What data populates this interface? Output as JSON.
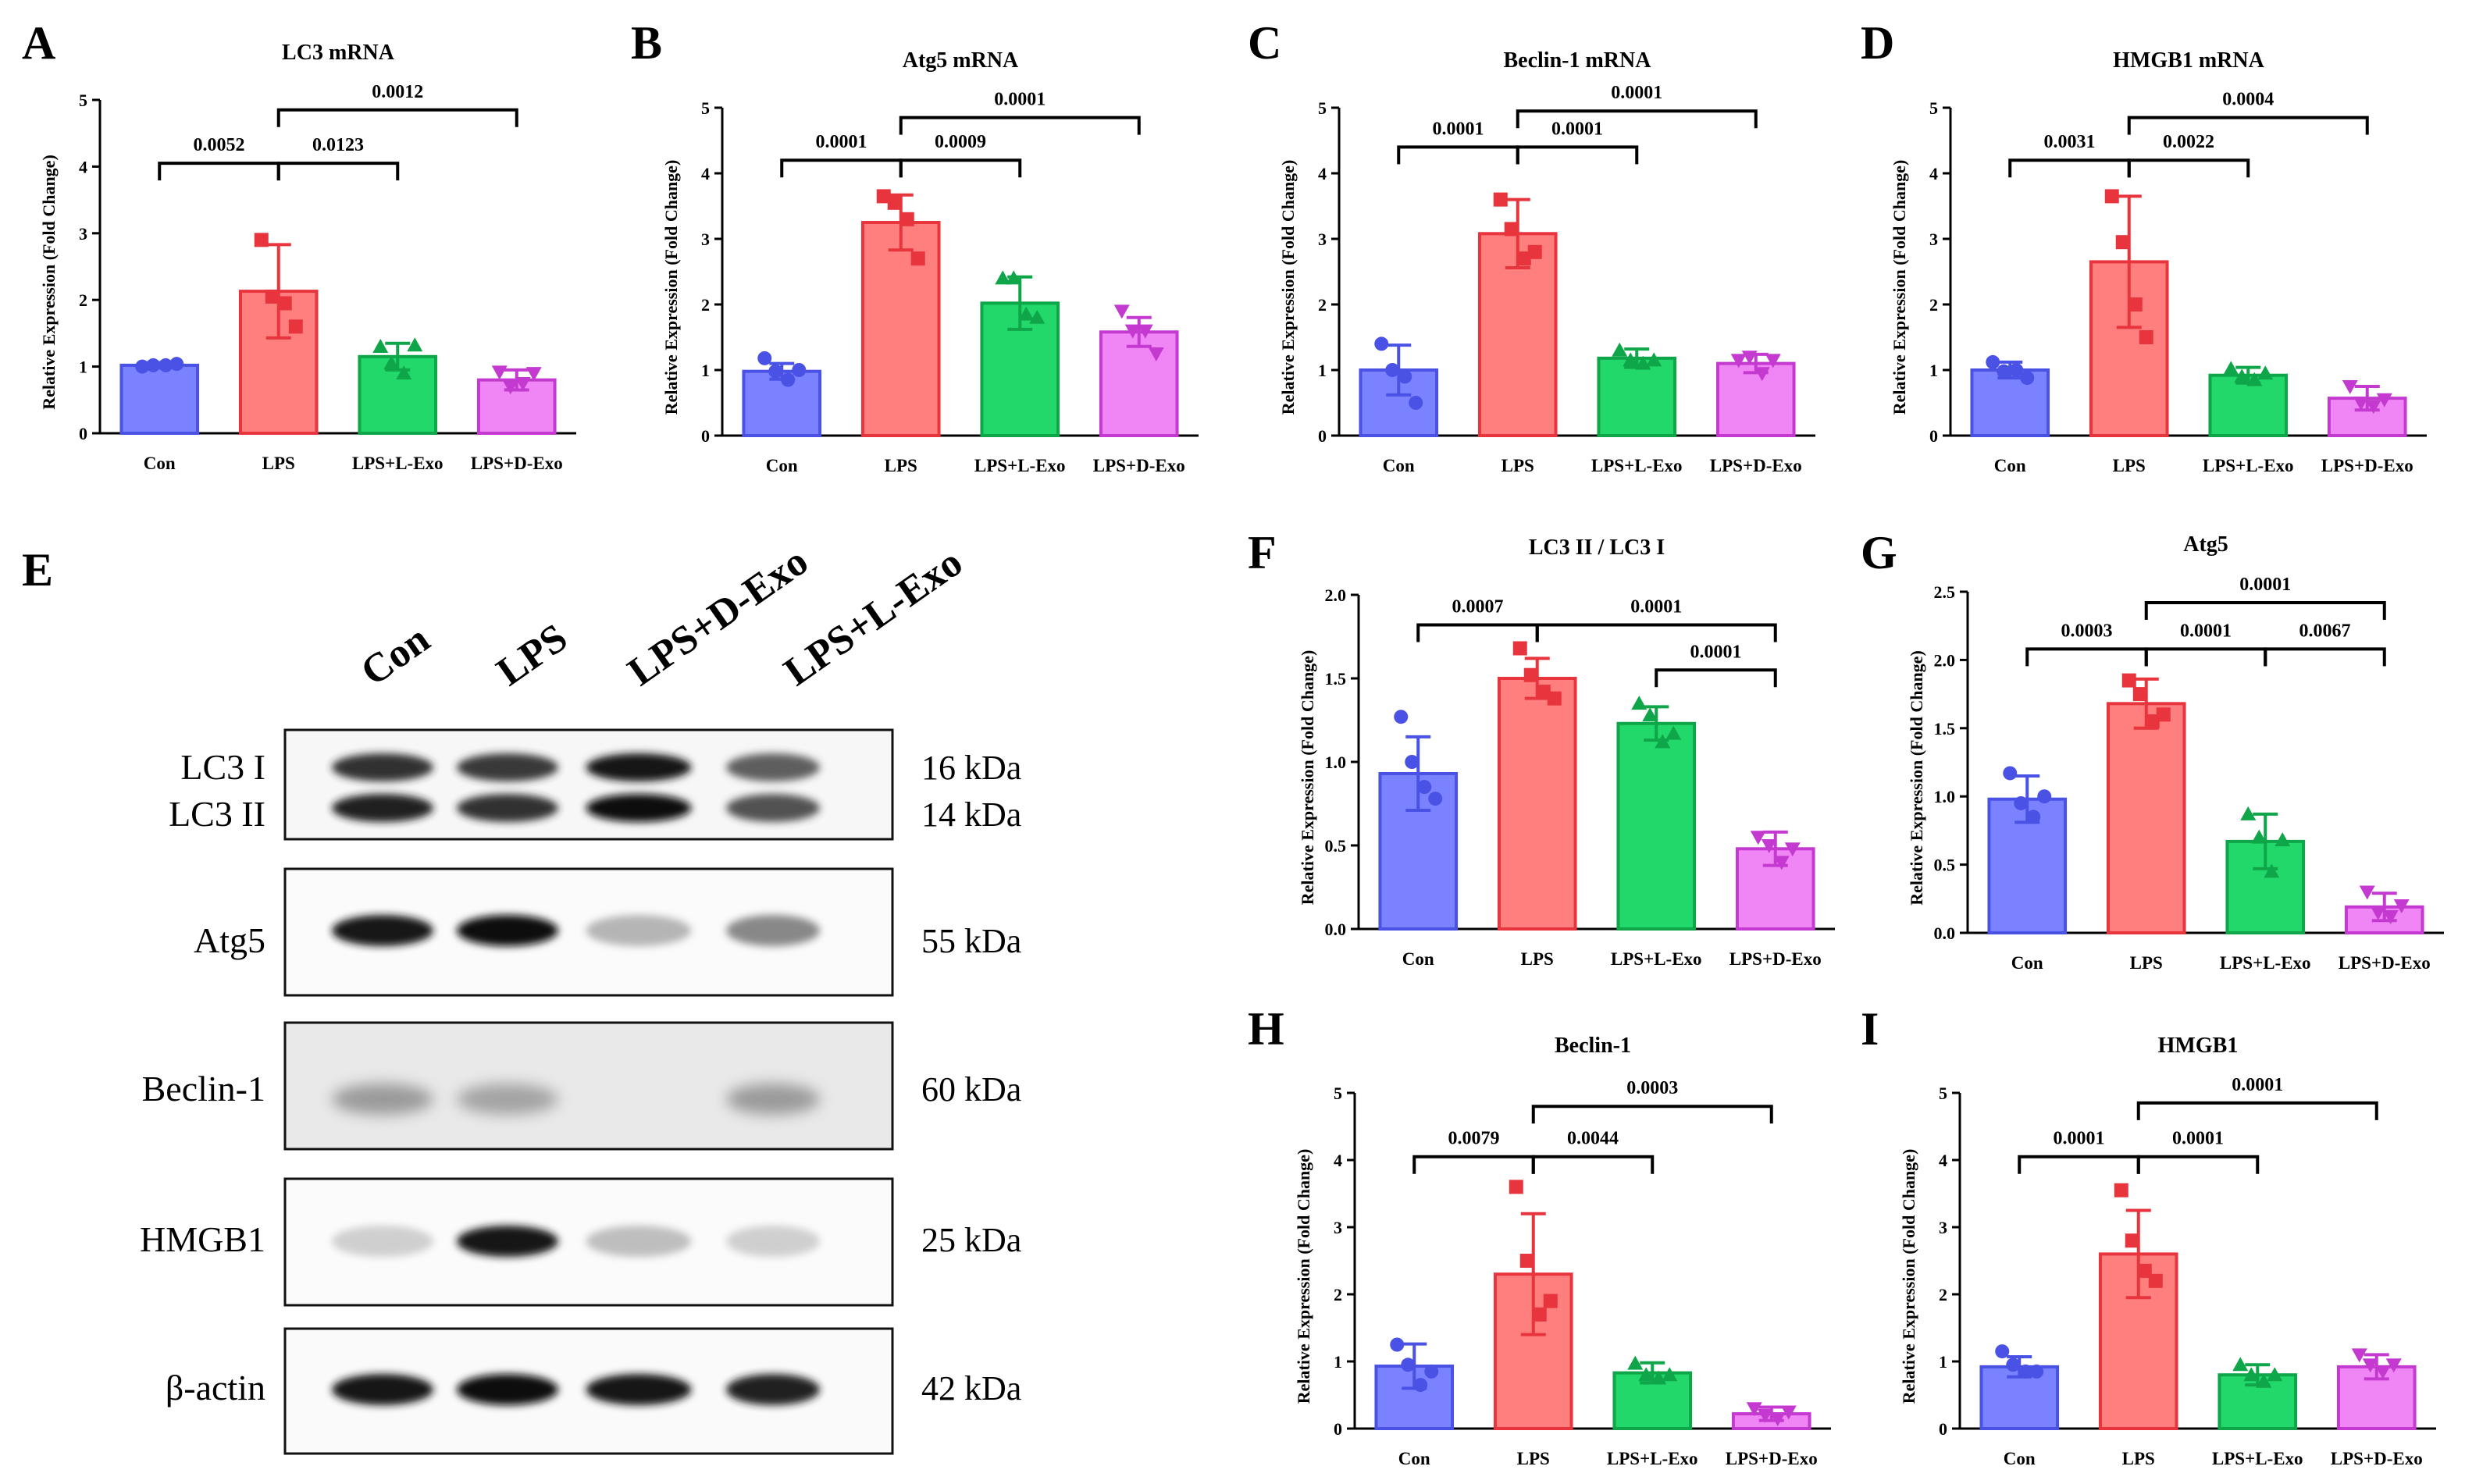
{
  "colors": {
    "Con": {
      "fill": "#7b82ff",
      "edge": "#4a52e6"
    },
    "LPS": {
      "fill": "#ff7f7f",
      "edge": "#e8343d"
    },
    "LPS+L-Exo": {
      "fill": "#22d86a",
      "edge": "#0fa64a"
    },
    "LPS+D-Exo": {
      "fill": "#f086f5",
      "edge": "#c43ad0"
    }
  },
  "chart_data": [
    {
      "panel": "A",
      "type": "bar",
      "title": "LC3 mRNA",
      "ylabel": [
        "Relative Expression",
        "(Fold Change)"
      ],
      "ylim": [
        0,
        5
      ],
      "yticks": [
        "0",
        "1",
        "2",
        "3",
        "4",
        "5"
      ],
      "ytick_values": [
        0,
        1,
        2,
        3,
        4,
        5
      ],
      "categories": [
        "Con",
        "LPS",
        "LPS+L-Exo",
        "LPS+D-Exo"
      ],
      "values": [
        1.02,
        2.13,
        1.15,
        0.8
      ],
      "errors": [
        0.04,
        0.7,
        0.2,
        0.15
      ],
      "points": [
        [
          1.0,
          1.02,
          1.02,
          1.04
        ],
        [
          2.9,
          2.05,
          1.95,
          1.6
        ],
        [
          1.3,
          1.05,
          0.9,
          1.32
        ],
        [
          0.92,
          0.7,
          0.75,
          0.9
        ]
      ],
      "comparisons": [
        {
          "from": 0,
          "to": 1,
          "y": 4.05,
          "label": "0.0052"
        },
        {
          "from": 1,
          "to": 2,
          "y": 4.05,
          "label": "0.0123"
        },
        {
          "from": 1,
          "to": 3,
          "y": 4.85,
          "label": "0.0012"
        }
      ]
    },
    {
      "panel": "B",
      "type": "bar",
      "title": "Atg5 mRNA",
      "ylabel": [
        "Relative Expression",
        "(Fold Change)"
      ],
      "ylim": [
        0,
        5
      ],
      "yticks": [
        "0",
        "1",
        "2",
        "3",
        "4",
        "5"
      ],
      "ytick_values": [
        0,
        1,
        2,
        3,
        4,
        5
      ],
      "categories": [
        "Con",
        "LPS",
        "LPS+L-Exo",
        "LPS+D-Exo"
      ],
      "values": [
        0.98,
        3.25,
        2.02,
        1.58
      ],
      "errors": [
        0.12,
        0.42,
        0.4,
        0.22
      ],
      "points": [
        [
          1.18,
          0.98,
          0.85,
          1.0
        ],
        [
          3.65,
          3.55,
          3.3,
          2.7
        ],
        [
          2.4,
          2.4,
          1.85,
          1.8
        ],
        [
          1.9,
          1.6,
          1.6,
          1.25
        ]
      ],
      "comparisons": [
        {
          "from": 0,
          "to": 1,
          "y": 4.2,
          "label": "0.0001"
        },
        {
          "from": 1,
          "to": 2,
          "y": 4.2,
          "label": "0.0009"
        },
        {
          "from": 1,
          "to": 3,
          "y": 4.85,
          "label": "0.0001"
        }
      ]
    },
    {
      "panel": "C",
      "type": "bar",
      "title": "Beclin-1 mRNA",
      "ylabel": [
        "Relative Expression",
        "(Fold Change)"
      ],
      "ylim": [
        0,
        5
      ],
      "yticks": [
        "0",
        "1",
        "2",
        "3",
        "4",
        "5"
      ],
      "ytick_values": [
        0,
        1,
        2,
        3,
        4,
        5
      ],
      "categories": [
        "Con",
        "LPS",
        "LPS+L-Exo",
        "LPS+D-Exo"
      ],
      "values": [
        1.0,
        3.08,
        1.18,
        1.1
      ],
      "errors": [
        0.38,
        0.52,
        0.14,
        0.14
      ],
      "points": [
        [
          1.4,
          1.0,
          0.9,
          0.5
        ],
        [
          3.6,
          3.15,
          2.7,
          2.8
        ],
        [
          1.3,
          1.15,
          1.1,
          1.15
        ],
        [
          1.15,
          1.2,
          0.95,
          1.15
        ]
      ],
      "comparisons": [
        {
          "from": 0,
          "to": 1,
          "y": 4.4,
          "label": "0.0001"
        },
        {
          "from": 1,
          "to": 2,
          "y": 4.4,
          "label": "0.0001"
        },
        {
          "from": 1,
          "to": 3,
          "y": 4.95,
          "label": "0.0001"
        }
      ]
    },
    {
      "panel": "D",
      "type": "bar",
      "title": "HMGB1 mRNA",
      "ylabel": [
        "Relative Expression",
        "(Fold Change)"
      ],
      "ylim": [
        0,
        5
      ],
      "yticks": [
        "0",
        "1",
        "2",
        "3",
        "4",
        "5"
      ],
      "ytick_values": [
        0,
        1,
        2,
        3,
        4,
        5
      ],
      "categories": [
        "Con",
        "LPS",
        "LPS+L-Exo",
        "LPS+D-Exo"
      ],
      "values": [
        1.0,
        2.65,
        0.92,
        0.57
      ],
      "errors": [
        0.12,
        1.0,
        0.12,
        0.18
      ],
      "points": [
        [
          1.12,
          0.98,
          1.0,
          0.88
        ],
        [
          3.65,
          2.95,
          2.0,
          1.5
        ],
        [
          1.02,
          0.9,
          0.85,
          0.95
        ],
        [
          0.75,
          0.5,
          0.45,
          0.55
        ]
      ],
      "comparisons": [
        {
          "from": 0,
          "to": 1,
          "y": 4.2,
          "label": "0.0031"
        },
        {
          "from": 1,
          "to": 2,
          "y": 4.2,
          "label": "0.0022"
        },
        {
          "from": 1,
          "to": 3,
          "y": 4.85,
          "label": "0.0004"
        }
      ]
    },
    {
      "panel": "F",
      "type": "bar",
      "title": "LC3 II / LC3 I",
      "ylabel": [
        "Relative Expression",
        "(Fold Change)"
      ],
      "ylim": [
        0,
        2.0
      ],
      "yticks": [
        "0.0",
        "0.5",
        "1.0",
        "1.5",
        "2.0"
      ],
      "ytick_values": [
        0,
        0.5,
        1.0,
        1.5,
        2.0
      ],
      "categories": [
        "Con",
        "LPS",
        "LPS+L-Exo",
        "LPS+D-Exo"
      ],
      "values": [
        0.93,
        1.5,
        1.23,
        0.48
      ],
      "errors": [
        0.22,
        0.12,
        0.1,
        0.1
      ],
      "points": [
        [
          1.27,
          1.0,
          0.85,
          0.78
        ],
        [
          1.68,
          1.52,
          1.42,
          1.38
        ],
        [
          1.35,
          1.28,
          1.12,
          1.17
        ],
        [
          0.55,
          0.5,
          0.4,
          0.48
        ]
      ],
      "comparisons": [
        {
          "from": 0,
          "to": 1,
          "y": 1.82,
          "label": "0.0007"
        },
        {
          "from": 1,
          "to": 3,
          "y": 1.82,
          "label": "0.0001"
        },
        {
          "from": 2,
          "to": 3,
          "y": 1.55,
          "label": "0.0001"
        }
      ]
    },
    {
      "panel": "G",
      "type": "bar",
      "title": "Atg5",
      "ylabel": [
        "Relative Expression",
        "(Fold Change)"
      ],
      "ylim": [
        0,
        2.5
      ],
      "yticks": [
        "0.0",
        "0.5",
        "1.0",
        "1.5",
        "2.0",
        "2.5"
      ],
      "ytick_values": [
        0,
        0.5,
        1.0,
        1.5,
        2.0,
        2.5
      ],
      "categories": [
        "Con",
        "LPS",
        "LPS+L-Exo",
        "LPS+D-Exo"
      ],
      "values": [
        0.98,
        1.68,
        0.67,
        0.19
      ],
      "errors": [
        0.17,
        0.18,
        0.2,
        0.1
      ],
      "points": [
        [
          1.17,
          0.95,
          0.85,
          1.0
        ],
        [
          1.85,
          1.75,
          1.55,
          1.6
        ],
        [
          0.87,
          0.7,
          0.45,
          0.68
        ],
        [
          0.3,
          0.15,
          0.12,
          0.2
        ]
      ],
      "comparisons": [
        {
          "from": 0,
          "to": 1,
          "y": 2.08,
          "label": "0.0003"
        },
        {
          "from": 1,
          "to": 2,
          "y": 2.08,
          "label": "0.0001"
        },
        {
          "from": 2,
          "to": 3,
          "y": 2.08,
          "label": "0.0067"
        },
        {
          "from": 1,
          "to": 3,
          "y": 2.42,
          "label": "0.0001"
        }
      ]
    },
    {
      "panel": "H",
      "type": "bar",
      "title": "Beclin-1",
      "ylabel": [
        "Relative Expression",
        "(Fold Change)"
      ],
      "ylim": [
        0,
        5
      ],
      "yticks": [
        "0",
        "1",
        "2",
        "3",
        "4",
        "5"
      ],
      "ytick_values": [
        0,
        1,
        2,
        3,
        4,
        5
      ],
      "categories": [
        "Con",
        "LPS",
        "LPS+L-Exo",
        "LPS+D-Exo"
      ],
      "values": [
        0.93,
        2.3,
        0.83,
        0.22
      ],
      "errors": [
        0.33,
        0.9,
        0.15,
        0.1
      ],
      "points": [
        [
          1.25,
          0.95,
          0.65,
          0.85
        ],
        [
          3.6,
          2.5,
          1.7,
          1.9
        ],
        [
          0.97,
          0.8,
          0.75,
          0.8
        ],
        [
          0.3,
          0.2,
          0.15,
          0.25
        ]
      ],
      "comparisons": [
        {
          "from": 0,
          "to": 1,
          "y": 4.05,
          "label": "0.0079"
        },
        {
          "from": 1,
          "to": 2,
          "y": 4.05,
          "label": "0.0044"
        },
        {
          "from": 1,
          "to": 3,
          "y": 4.8,
          "label": "0.0003"
        }
      ]
    },
    {
      "panel": "I",
      "type": "bar",
      "title": "HMGB1",
      "ylabel": [
        "Relative Expression",
        "(Fold Change)"
      ],
      "ylim": [
        0,
        5
      ],
      "yticks": [
        "0",
        "1",
        "2",
        "3",
        "4",
        "5"
      ],
      "ytick_values": [
        0,
        1,
        2,
        3,
        4,
        5
      ],
      "categories": [
        "Con",
        "LPS",
        "LPS+L-Exo",
        "LPS+D-Exo"
      ],
      "values": [
        0.92,
        2.6,
        0.8,
        0.92
      ],
      "errors": [
        0.15,
        0.65,
        0.15,
        0.18
      ],
      "points": [
        [
          1.15,
          0.95,
          0.85,
          0.85
        ],
        [
          3.55,
          2.8,
          2.35,
          2.2
        ],
        [
          0.95,
          0.8,
          0.7,
          0.8
        ],
        [
          1.1,
          0.95,
          0.85,
          0.95
        ]
      ],
      "comparisons": [
        {
          "from": 0,
          "to": 1,
          "y": 4.05,
          "label": "0.0001"
        },
        {
          "from": 1,
          "to": 2,
          "y": 4.05,
          "label": "0.0001"
        },
        {
          "from": 1,
          "to": 3,
          "y": 4.85,
          "label": "0.0001"
        }
      ]
    }
  ],
  "western_blot": {
    "panel": "E",
    "lanes": [
      "Con",
      "LPS",
      "LPS+D-Exo",
      "LPS+L-Exo"
    ],
    "rows": [
      {
        "proteins": [
          "LC3 I",
          "LC3 II"
        ],
        "kda": [
          "16 kDa",
          "14 kDa"
        ]
      },
      {
        "proteins": [
          "Atg5"
        ],
        "kda": [
          "55 kDa"
        ]
      },
      {
        "proteins": [
          "Beclin-1"
        ],
        "kda": [
          "60 kDa"
        ]
      },
      {
        "proteins": [
          "HMGB1"
        ],
        "kda": [
          "25 kDa"
        ]
      },
      {
        "proteins": [
          "β-actin"
        ],
        "kda": [
          "42 kDa"
        ]
      }
    ],
    "band_intensity": [
      [
        [
          0.85,
          0.82,
          0.95,
          0.7
        ],
        [
          0.9,
          0.85,
          1.0,
          0.75
        ]
      ],
      [
        [
          0.92,
          1.0,
          0.35,
          0.55
        ]
      ],
      [
        [
          0.45,
          0.4,
          0.0,
          0.45
        ]
      ],
      [
        [
          0.2,
          0.95,
          0.3,
          0.2
        ]
      ],
      [
        [
          0.95,
          1.0,
          0.95,
          0.9
        ]
      ]
    ]
  }
}
